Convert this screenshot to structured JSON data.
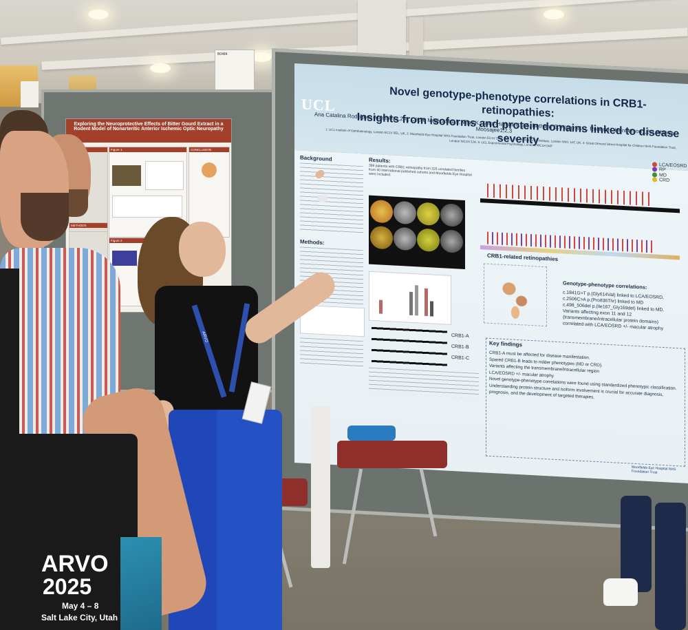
{
  "scene": {
    "description_tags": [
      "conference-hall",
      "poster-session"
    ],
    "colors": {
      "poster_header_blue": "#c6dde9",
      "left_poster_red": "#a2402c",
      "trousers_blue": "#1f47b8",
      "bag_black": "#1a1a1a"
    }
  },
  "hanging_sign": {
    "label": "B0484"
  },
  "left_poster": {
    "title": "Exploring the Neuroprotective Effects of Bitter Gourd Extract in a Rodent Model of Nonarteritic Anterior Ischemic Optic Neuropathy",
    "sections": [
      "PURPOSE",
      "Figure 1",
      "Figure 2",
      "CONCLUSION",
      "METHODS",
      "RESULTS"
    ]
  },
  "right_poster": {
    "logo": "UCL",
    "title_line1": "Novel genotype-phenotype correlations in CRB1-retinopathies:",
    "title_line2": "Insights from isoforms and protein domains linked to disease severity",
    "authors": "Ana Catalina Rodriguez-Martinez1,2,4, Cécile Méjécase1,5, Vijay K. Tailor-Hamblin1,2,5, Bethany E. Higgins1,2, Robert H. Henderson1,2,4, Mariya Moosajee1,2,3",
    "affiliations": "1: UCL Institute of Ophthalmology, London EC1V 9EL, UK, 2: Moorfields Eye Hospital NHS Foundation Trust, London EC1V 2PD, UK, 3: The Francis Crick Institute, London NW1 1AT, UK, 4: Great Ormond Street Hospital for Children NHS Foundation Trust, London WC1N 3JH, 5: UCL Experimental Psychology, London, WC1H 0AP",
    "background_heading": "Background",
    "methods_heading": "Methods:",
    "results_heading": "Results:",
    "results_text": "389 patients with CRB1 retinopathy from 325 unrelated families from 40 international published cohorts and Moorfields Eye Hospital were included.",
    "legend": [
      {
        "label": "LCA/EOSRD",
        "color": "#d2453a"
      },
      {
        "label": "RP",
        "color": "#7a3fa8"
      },
      {
        "label": "MD",
        "color": "#3e8f3a"
      },
      {
        "label": "CRD",
        "color": "#e2b927"
      }
    ],
    "isoform_labels": [
      "CRB1-A",
      "CRB1-B",
      "CRB1-C"
    ],
    "structure_heading": "CRB1-related retinopathies",
    "correlations_heading": "Genotype-phenotype correlations:",
    "correlations": [
      "c.1841G>T p.(Gly614Val) linked to LCA/EOSRD,",
      "c.2506C>A p.(Pro836Thr) linked to MD",
      "c.498_506del p.(Ile167_Gly169del) linked to MD.",
      "Variants affecting exon 11 and 12",
      "(transmembrane/intracellular protein domains)",
      "correlated with LCA/EOSRD +/- macular atrophy"
    ],
    "key_heading": "Key findings",
    "key_findings": [
      "CRB1-A must be affected for disease manifestation.",
      "Spared CRB1-B leads to milder phenotypes (MD or CRD).",
      "Variants affecting the transmembrane/intracellular region",
      "LCA/EOSRD +/- macular atrophy",
      "Novel genotype-phenotype correlations were found using standardized phenotypic classification.",
      "Understanding protein structure and isoform involvement is crucial for accurate diagnosis, prognosis, and the development of targeted therapies."
    ],
    "footer_logo": "Moorfields Eye Hospital NHS Foundation Trust"
  },
  "tote_bag": {
    "brand": "ARVO",
    "year": "2025",
    "dates": "May 4 – 8",
    "location": "Salt Lake City, Utah"
  },
  "lanyard": {
    "text": "ARVO"
  }
}
